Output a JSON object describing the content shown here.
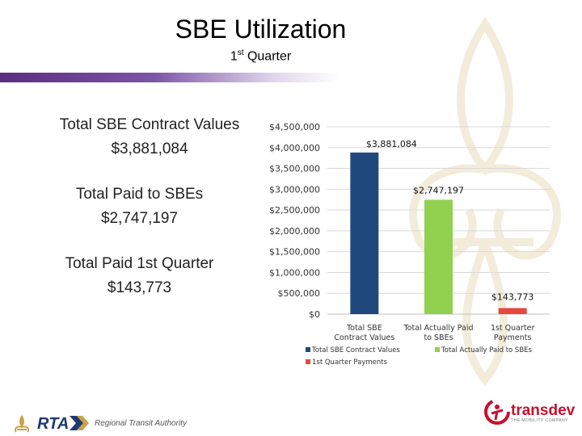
{
  "slide": {
    "title": "SBE Utilization",
    "subtitle_main": "1",
    "subtitle_sup": "st",
    "subtitle_rest": " Quarter"
  },
  "stats": [
    {
      "label": "Total SBE Contract Values",
      "value": "$3,881,084"
    },
    {
      "label": "Total Paid to SBEs",
      "value": "$2,747,197"
    },
    {
      "label": "Total Paid 1st Quarter",
      "value": "$143,773"
    }
  ],
  "footer": {
    "rta_abbrev": "RTA",
    "rta_name": "Regional Transit Authority",
    "partner_name": "transdev",
    "partner_tagline": "THE MOBILITY COMPANY"
  },
  "colors": {
    "accent_purple": "#5a2d82",
    "bar_contract": "#1f497d",
    "bar_paid": "#92d050",
    "bar_quarter": "#e8473c"
  },
  "chart_data": {
    "type": "bar",
    "categories": [
      "Total SBE Contract Values",
      "Total Actually Paid to SBEs",
      "1st Quarter Payments"
    ],
    "category_lines": [
      [
        "Total SBE",
        "Contract Values"
      ],
      [
        "Total Actually Paid",
        "to SBEs"
      ],
      [
        "1st Quarter",
        "Payments"
      ]
    ],
    "values": [
      3881084,
      2747197,
      143773
    ],
    "data_labels": [
      "$3,881,084",
      "$2,747,197",
      "$143,773"
    ],
    "bar_colors": [
      "#1f497d",
      "#92d050",
      "#e8473c"
    ],
    "ylim": [
      0,
      4500000
    ],
    "y_ticks": [
      0,
      500000,
      1000000,
      1500000,
      2000000,
      2500000,
      3000000,
      3500000,
      4000000,
      4500000
    ],
    "y_tick_labels": [
      "$0",
      "$500,000",
      "$1,000,000",
      "$1,500,000",
      "$2,000,000",
      "$2,500,000",
      "$3,000,000",
      "$3,500,000",
      "$4,000,000",
      "$4,500,000"
    ],
    "grid": true,
    "legend": [
      "Total SBE Contract Values",
      "Total Actually Paid to SBEs",
      "1st Quarter Payments"
    ],
    "legend_placement": "bottom"
  }
}
